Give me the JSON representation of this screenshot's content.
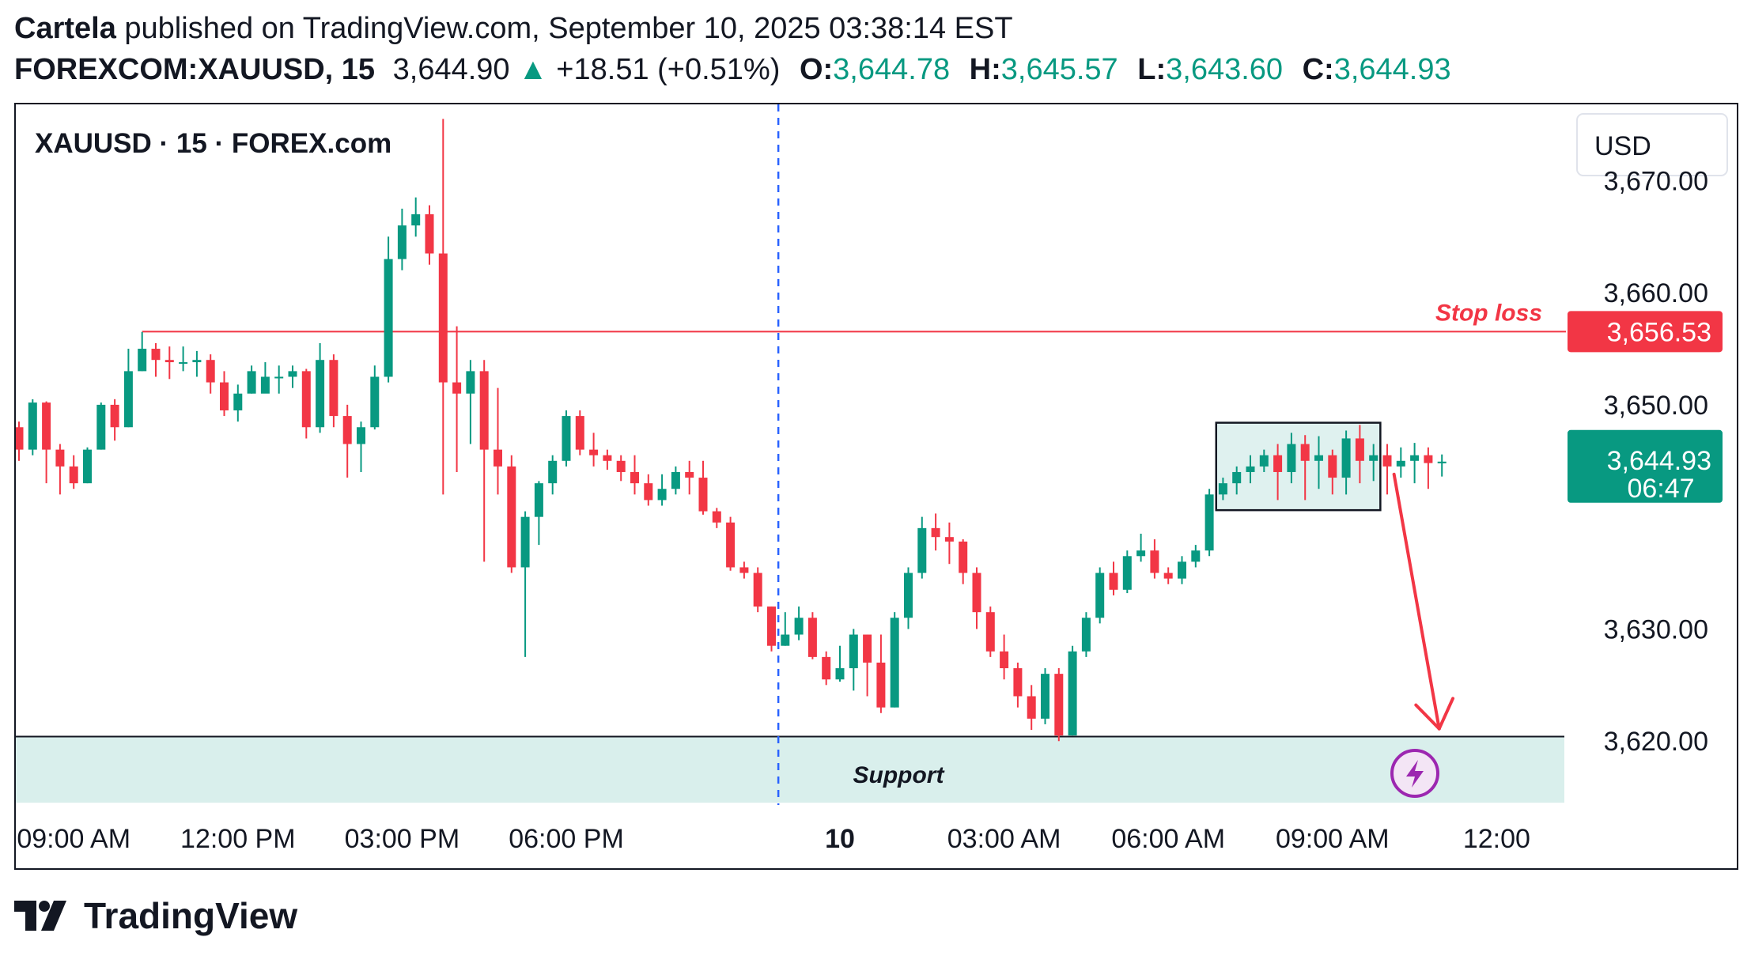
{
  "header": {
    "author": "Cartela",
    "published_text": "published on TradingView.com, September 10, 2025 03:38:14 EST",
    "symbol": "FOREXCOM:XAUUSD, 15",
    "last": "3,644.90",
    "change": "+18.51 (+0.51%)",
    "o_label": "O:",
    "o_value": "3,644.78",
    "h_label": "H:",
    "h_value": "3,645.57",
    "l_label": "L:",
    "l_value": "3,643.60",
    "c_label": "C:",
    "c_value": "3,644.93"
  },
  "brand": "TradingView",
  "colors": {
    "up": "#089981",
    "down": "#f23645",
    "support_fill": "#d9efec",
    "dashed": "#2962ff",
    "stop": "#f23645"
  },
  "chart_data": {
    "type": "candlestick",
    "title": "XAUUSD · 15 · FOREX.com",
    "currency": "USD",
    "ylim": [
      3614.3,
      3676.8
    ],
    "y_ticks": [
      3670,
      3660,
      3650,
      3630,
      3620
    ],
    "y_tick_labels": [
      "3,670.00",
      "3,660.00",
      "3,650.00",
      "3,630.00",
      "3,620.00"
    ],
    "x_tick_labels": [
      "09:00 AM",
      "12:00 PM",
      "03:00 PM",
      "06:00 PM",
      "10",
      "03:00 AM",
      "06:00 AM",
      "09:00 AM",
      "12:00"
    ],
    "x_tick_index": [
      4,
      16,
      28,
      40,
      60,
      72,
      84,
      96,
      108
    ],
    "session_break_index": 55.5,
    "stop_loss": {
      "label": "Stop loss",
      "value": 3656.53,
      "value_label": "3,656.53",
      "start_index": 9
    },
    "last_price": {
      "value": 3644.93,
      "value_label": "3,644.93",
      "countdown": "06:47"
    },
    "support": {
      "label": "Support",
      "low": 3614.5,
      "high": 3620.4
    },
    "consolidation_box": {
      "start_index": 87.5,
      "end_index": 99.5,
      "low": 3640.6,
      "high": 3648.4
    },
    "projection_arrow": {
      "from_index": 100.5,
      "from_price": 3643.8,
      "to_index": 103.8,
      "to_price": 3621.1
    },
    "candles": [
      [
        3648,
        3646,
        3648.5,
        3645
      ],
      [
        3646,
        3650.2,
        3650.5,
        3645.5
      ],
      [
        3650.2,
        3646,
        3650.3,
        3643
      ],
      [
        3646,
        3644.5,
        3646.5,
        3642
      ],
      [
        3644.5,
        3643,
        3645.5,
        3642.5
      ],
      [
        3643,
        3646,
        3646.2,
        3643
      ],
      [
        3646,
        3650,
        3650.2,
        3646
      ],
      [
        3650,
        3648,
        3650.5,
        3646.8
      ],
      [
        3648,
        3653,
        3655,
        3648
      ],
      [
        3653,
        3655,
        3656.5,
        3653
      ],
      [
        3655,
        3654,
        3655.5,
        3652.5
      ],
      [
        3654,
        3653.8,
        3655.2,
        3652.3
      ],
      [
        3653.8,
        3653.8,
        3655.2,
        3653
      ],
      [
        3653.8,
        3654,
        3654.8,
        3652.5
      ],
      [
        3654,
        3652,
        3654.5,
        3651
      ],
      [
        3652,
        3649.5,
        3653,
        3649
      ],
      [
        3649.5,
        3651,
        3651.8,
        3648.5
      ],
      [
        3651,
        3653,
        3653.5,
        3651
      ],
      [
        3651,
        3652.5,
        3653.8,
        3651.2
      ],
      [
        3652.5,
        3652.5,
        3653.5,
        3651
      ],
      [
        3652.5,
        3653,
        3653.5,
        3651.5
      ],
      [
        3653,
        3648,
        3653.2,
        3647
      ],
      [
        3648,
        3654,
        3655.5,
        3647.5
      ],
      [
        3654,
        3649,
        3654.5,
        3648
      ],
      [
        3649,
        3646.5,
        3650,
        3643.5
      ],
      [
        3646.5,
        3648,
        3648.5,
        3644
      ],
      [
        3648,
        3652.5,
        3653.5,
        3647.8
      ],
      [
        3652.5,
        3663,
        3665,
        3652
      ],
      [
        3663,
        3666,
        3667.5,
        3662
      ],
      [
        3666,
        3667,
        3668.5,
        3665
      ],
      [
        3667,
        3663.5,
        3667.8,
        3662.5
      ],
      [
        3663.5,
        3652,
        3675.5,
        3642
      ],
      [
        3652,
        3651,
        3657,
        3644
      ],
      [
        3651,
        3653,
        3654,
        3646.5
      ],
      [
        3653,
        3646,
        3654,
        3636
      ],
      [
        3646,
        3644.5,
        3651.5,
        3642
      ],
      [
        3644.5,
        3635.5,
        3645.5,
        3635
      ],
      [
        3635.5,
        3640,
        3640.5,
        3627.5
      ],
      [
        3640,
        3643,
        3643.2,
        3637.5
      ],
      [
        3643,
        3645,
        3645.5,
        3642
      ],
      [
        3645,
        3649,
        3649.5,
        3644.5
      ],
      [
        3649,
        3646,
        3649.5,
        3645.5
      ],
      [
        3646,
        3645.5,
        3647.5,
        3644.5
      ],
      [
        3645.5,
        3645,
        3646,
        3644.2
      ],
      [
        3645,
        3644,
        3645.5,
        3643.2
      ],
      [
        3644,
        3643,
        3645.5,
        3642
      ],
      [
        3643,
        3641.5,
        3643.8,
        3641
      ],
      [
        3641.5,
        3642.5,
        3643.8,
        3641
      ],
      [
        3642.5,
        3644,
        3644.5,
        3642
      ],
      [
        3644,
        3643.5,
        3645,
        3642
      ],
      [
        3643.5,
        3640.5,
        3645,
        3640.2
      ],
      [
        3640.5,
        3639.5,
        3640.8,
        3639
      ],
      [
        3639.5,
        3635.5,
        3640,
        3635.2
      ],
      [
        3635.5,
        3635,
        3636,
        3634.5
      ],
      [
        3635,
        3632,
        3635.5,
        3631.5
      ],
      [
        3632,
        3628.5,
        3632,
        3628
      ],
      [
        3628.5,
        3629.5,
        3631.5,
        3628.5
      ],
      [
        3629.5,
        3631,
        3632,
        3629
      ],
      [
        3631,
        3627.5,
        3631.5,
        3627.3
      ],
      [
        3627.5,
        3625.5,
        3628,
        3625
      ],
      [
        3625.5,
        3626.5,
        3628.5,
        3625.3
      ],
      [
        3626.5,
        3629.5,
        3630,
        3624.5
      ],
      [
        3629.5,
        3627,
        3629.5,
        3624
      ],
      [
        3627,
        3623,
        3629.5,
        3622.5
      ],
      [
        3623,
        3631,
        3631.5,
        3623
      ],
      [
        3631,
        3635,
        3635.5,
        3630
      ],
      [
        3635,
        3639,
        3640,
        3634.5
      ],
      [
        3639,
        3638.2,
        3640.3,
        3637
      ],
      [
        3638.2,
        3637.8,
        3639.5,
        3635.8
      ],
      [
        3637.8,
        3635,
        3638,
        3634
      ],
      [
        3635,
        3631.5,
        3635.5,
        3630
      ],
      [
        3631.5,
        3628,
        3632,
        3627.5
      ],
      [
        3628,
        3626.5,
        3629.5,
        3625.5
      ],
      [
        3626.5,
        3624,
        3627,
        3623
      ],
      [
        3624,
        3622,
        3625,
        3621
      ],
      [
        3622,
        3626,
        3626.5,
        3621.5
      ],
      [
        3626,
        3620.5,
        3626.5,
        3620
      ],
      [
        3620.5,
        3628,
        3628.5,
        3620.5
      ],
      [
        3628,
        3631,
        3631.5,
        3627.5
      ],
      [
        3631,
        3635,
        3635.5,
        3630.5
      ],
      [
        3635,
        3633.5,
        3636,
        3633
      ],
      [
        3633.5,
        3636.5,
        3637,
        3633.2
      ],
      [
        3636.5,
        3637,
        3638.5,
        3636
      ],
      [
        3637,
        3635,
        3638,
        3634.5
      ],
      [
        3635,
        3634.5,
        3635.5,
        3634
      ],
      [
        3634.5,
        3636,
        3636.5,
        3634
      ],
      [
        3636,
        3637,
        3637.5,
        3635.5
      ],
      [
        3637,
        3642,
        3642.5,
        3636.5
      ],
      [
        3642,
        3643,
        3643.5,
        3641.5
      ],
      [
        3643,
        3644,
        3644.5,
        3642
      ],
      [
        3644,
        3644.5,
        3645.5,
        3643
      ],
      [
        3644.5,
        3645.5,
        3646,
        3644
      ],
      [
        3645.5,
        3644,
        3646.5,
        3641.5
      ],
      [
        3644,
        3646.5,
        3647.5,
        3643
      ],
      [
        3646.5,
        3645,
        3647.3,
        3641.5
      ],
      [
        3645,
        3645.5,
        3647.2,
        3642.5
      ],
      [
        3645.5,
        3643.5,
        3646,
        3642
      ],
      [
        3643.5,
        3647,
        3647.7,
        3642
      ],
      [
        3647,
        3645,
        3648.2,
        3643
      ],
      [
        3645,
        3645.5,
        3646.5,
        3643.2
      ],
      [
        3645.5,
        3644.5,
        3646.5,
        3642
      ],
      [
        3644.5,
        3645,
        3646.2,
        3643.5
      ],
      [
        3645,
        3645.5,
        3646.6,
        3643
      ],
      [
        3645.5,
        3644.8,
        3646.2,
        3642.5
      ],
      [
        3644.78,
        3644.93,
        3645.57,
        3643.6
      ]
    ]
  }
}
